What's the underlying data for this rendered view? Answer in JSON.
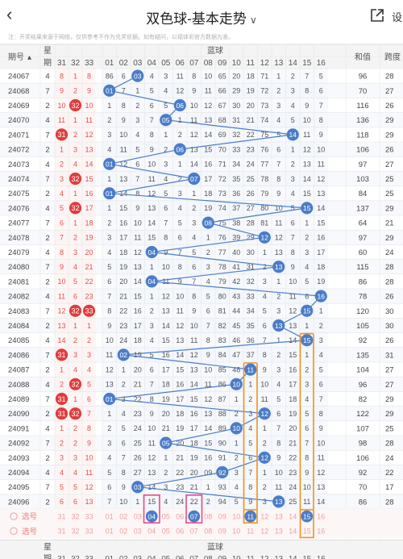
{
  "header": {
    "back_icon": "back-chevron-icon",
    "title": "双色球-基本走势",
    "title_chevron": "chevron-down-icon",
    "share_icon": "share-icon",
    "settings_label": "设"
  },
  "notice": "注：开奖结果来源于网络，仅供参考不作为兑奖依据。如有疑问，以福体彩官方数据为准。",
  "table": {
    "col_period": "期号",
    "col_week": "星期",
    "col_blue": "蓝球",
    "col_sum": "和值",
    "col_span": "跨度",
    "week_head_top": "星",
    "week_head_bottom": "期",
    "red_headers": [
      "31",
      "32",
      "33"
    ],
    "blue_headers": [
      "01",
      "02",
      "03",
      "04",
      "05",
      "06",
      "07",
      "08",
      "09",
      "10",
      "11",
      "12",
      "13",
      "14",
      "15",
      "16"
    ],
    "rows": [
      {
        "p": "24067",
        "w": "4",
        "r": [
          "8",
          "1",
          "8"
        ],
        "b": [
          "86",
          "6",
          "03",
          "4",
          "3",
          "11",
          "8",
          "10",
          "65",
          "20",
          "18",
          "71",
          "1",
          "2",
          "7",
          "5"
        ],
        "hit": 3,
        "sum": "96",
        "span": "28"
      },
      {
        "p": "24068",
        "w": "7",
        "r": [
          "9",
          "2",
          "9"
        ],
        "b": [
          "01",
          "7",
          "1",
          "5",
          "4",
          "12",
          "9",
          "11",
          "66",
          "29",
          "19",
          "72",
          "2",
          "3",
          "8",
          "6"
        ],
        "hit": 1,
        "sum": "70",
        "span": "27"
      },
      {
        "p": "24069",
        "w": "2",
        "r": [
          "10",
          "32",
          "10"
        ],
        "b": [
          "1",
          "8",
          "2",
          "6",
          "5",
          "06",
          "10",
          "12",
          "67",
          "30",
          "20",
          "73",
          "3",
          "4",
          "9",
          "7"
        ],
        "hit": 6,
        "sum": "116",
        "span": "26"
      },
      {
        "p": "24070",
        "w": "4",
        "r": [
          "11",
          "1",
          "11"
        ],
        "b": [
          "2",
          "9",
          "3",
          "7",
          "05",
          "1",
          "11",
          "13",
          "68",
          "31",
          "21",
          "74",
          "4",
          "5",
          "10",
          "8"
        ],
        "hit": 5,
        "sum": "136",
        "span": "29"
      },
      {
        "p": "24071",
        "w": "7",
        "r": [
          "31",
          "2",
          "12"
        ],
        "b": [
          "3",
          "10",
          "4",
          "8",
          "1",
          "2",
          "12",
          "14",
          "69",
          "32",
          "22",
          "75",
          "5",
          "14",
          "11",
          "9"
        ],
        "hit": 14,
        "sum": "118",
        "span": "29"
      },
      {
        "p": "24072",
        "w": "2",
        "r": [
          "1",
          "3",
          "13"
        ],
        "b": [
          "4",
          "11",
          "5",
          "9",
          "2",
          "06",
          "13",
          "15",
          "70",
          "33",
          "23",
          "76",
          "6",
          "1",
          "12",
          "10"
        ],
        "hit": 6,
        "sum": "106",
        "span": "26"
      },
      {
        "p": "24073",
        "w": "4",
        "r": [
          "2",
          "4",
          "14"
        ],
        "b": [
          "01",
          "12",
          "6",
          "10",
          "3",
          "1",
          "14",
          "16",
          "71",
          "34",
          "24",
          "77",
          "7",
          "2",
          "13",
          "11"
        ],
        "hit": 1,
        "sum": "97",
        "span": "27"
      },
      {
        "p": "24074",
        "w": "7",
        "r": [
          "3",
          "32",
          "15"
        ],
        "b": [
          "1",
          "13",
          "7",
          "11",
          "4",
          "2",
          "07",
          "17",
          "72",
          "35",
          "25",
          "78",
          "8",
          "3",
          "14",
          "12"
        ],
        "hit": 7,
        "sum": "103",
        "span": "25"
      },
      {
        "p": "24075",
        "w": "2",
        "r": [
          "4",
          "1",
          "16"
        ],
        "b": [
          "01",
          "14",
          "8",
          "12",
          "5",
          "3",
          "1",
          "18",
          "73",
          "36",
          "26",
          "79",
          "9",
          "4",
          "15",
          "13"
        ],
        "hit": 1,
        "sum": "84",
        "span": "25"
      },
      {
        "p": "24076",
        "w": "4",
        "r": [
          "5",
          "32",
          "17"
        ],
        "b": [
          "1",
          "15",
          "9",
          "13",
          "6",
          "4",
          "2",
          "19",
          "74",
          "37",
          "27",
          "80",
          "10",
          "5",
          "15",
          "14"
        ],
        "hit": 15,
        "sum": "137",
        "span": "29"
      },
      {
        "p": "24077",
        "w": "7",
        "r": [
          "6",
          "1",
          "18"
        ],
        "b": [
          "2",
          "16",
          "10",
          "14",
          "7",
          "5",
          "3",
          "08",
          "75",
          "38",
          "28",
          "81",
          "11",
          "6",
          "1",
          "15"
        ],
        "hit": 8,
        "sum": "64",
        "span": "21"
      },
      {
        "p": "24078",
        "w": "2",
        "r": [
          "7",
          "2",
          "19"
        ],
        "b": [
          "3",
          "17",
          "11",
          "15",
          "8",
          "6",
          "4",
          "1",
          "76",
          "39",
          "29",
          "12",
          "12",
          "7",
          "2",
          "16"
        ],
        "hit": 12,
        "sum": "97",
        "span": "29"
      },
      {
        "p": "24079",
        "w": "4",
        "r": [
          "8",
          "3",
          "20"
        ],
        "b": [
          "4",
          "18",
          "12",
          "04",
          "9",
          "7",
          "5",
          "2",
          "77",
          "40",
          "30",
          "1",
          "13",
          "8",
          "3",
          "17"
        ],
        "hit": 4,
        "sum": "60",
        "span": "24"
      },
      {
        "p": "24080",
        "w": "7",
        "r": [
          "9",
          "4",
          "21"
        ],
        "b": [
          "5",
          "19",
          "13",
          "1",
          "10",
          "8",
          "6",
          "3",
          "78",
          "41",
          "31",
          "2",
          "13",
          "9",
          "4",
          "18"
        ],
        "hit": 13,
        "sum": "115",
        "span": "28"
      },
      {
        "p": "24081",
        "w": "2",
        "r": [
          "10",
          "5",
          "22"
        ],
        "b": [
          "6",
          "20",
          "14",
          "04",
          "11",
          "9",
          "7",
          "4",
          "79",
          "42",
          "32",
          "3",
          "1",
          "10",
          "5",
          "19"
        ],
        "hit": 4,
        "sum": "86",
        "span": "28"
      },
      {
        "p": "24082",
        "w": "4",
        "r": [
          "11",
          "6",
          "23"
        ],
        "b": [
          "7",
          "21",
          "15",
          "1",
          "12",
          "10",
          "8",
          "5",
          "80",
          "43",
          "33",
          "4",
          "2",
          "11",
          "6",
          "16"
        ],
        "hit": 16,
        "sum": "78",
        "span": "26"
      },
      {
        "p": "24083",
        "w": "7",
        "r": [
          "12",
          "32",
          "33"
        ],
        "b": [
          "8",
          "22",
          "16",
          "2",
          "13",
          "11",
          "9",
          "6",
          "81",
          "44",
          "34",
          "5",
          "3",
          "12",
          "15",
          "1"
        ],
        "hit": 15,
        "sum": "120",
        "span": "30"
      },
      {
        "p": "24084",
        "w": "2",
        "r": [
          "13",
          "1",
          "1"
        ],
        "b": [
          "9",
          "23",
          "17",
          "3",
          "14",
          "12",
          "10",
          "7",
          "82",
          "45",
          "35",
          "6",
          "13",
          "13",
          "1",
          "2"
        ],
        "hit": 13,
        "sum": "105",
        "span": "30"
      },
      {
        "p": "24085",
        "w": "4",
        "r": [
          "14",
          "2",
          "2"
        ],
        "b": [
          "10",
          "24",
          "18",
          "4",
          "15",
          "13",
          "11",
          "8",
          "83",
          "46",
          "36",
          "7",
          "1",
          "14",
          "15",
          "3"
        ],
        "hit": 15,
        "sum": "92",
        "span": "26"
      },
      {
        "p": "24086",
        "w": "7",
        "r": [
          "31",
          "3",
          "3"
        ],
        "b": [
          "11",
          "02",
          "19",
          "5",
          "16",
          "14",
          "12",
          "9",
          "84",
          "47",
          "37",
          "8",
          "2",
          "15",
          "1",
          "4"
        ],
        "hit": 2,
        "sum": "135",
        "span": "31"
      },
      {
        "p": "24087",
        "w": "2",
        "r": [
          "1",
          "4",
          "4"
        ],
        "b": [
          "12",
          "1",
          "20",
          "6",
          "17",
          "15",
          "13",
          "10",
          "85",
          "48",
          "11",
          "9",
          "3",
          "16",
          "2",
          "5"
        ],
        "hit": 11,
        "sum": "104",
        "span": "27"
      },
      {
        "p": "24088",
        "w": "4",
        "r": [
          "2",
          "32",
          "5"
        ],
        "b": [
          "13",
          "2",
          "21",
          "7",
          "18",
          "16",
          "14",
          "11",
          "86",
          "10",
          "1",
          "10",
          "4",
          "17",
          "3",
          "6"
        ],
        "hit": 10,
        "sum": "96",
        "span": "27"
      },
      {
        "p": "24089",
        "w": "7",
        "r": [
          "31",
          "1",
          "6"
        ],
        "b": [
          "01",
          "3",
          "22",
          "8",
          "19",
          "17",
          "15",
          "12",
          "87",
          "1",
          "2",
          "11",
          "5",
          "18",
          "4",
          "7"
        ],
        "hit": 1,
        "sum": "82",
        "span": "29"
      },
      {
        "p": "24090",
        "w": "2",
        "r": [
          "31",
          "32",
          "7"
        ],
        "b": [
          "1",
          "4",
          "23",
          "9",
          "20",
          "18",
          "16",
          "13",
          "88",
          "2",
          "3",
          "12",
          "6",
          "19",
          "5",
          "8"
        ],
        "hit": 12,
        "sum": "122",
        "span": "29"
      },
      {
        "p": "24091",
        "w": "4",
        "r": [
          "1",
          "2",
          "8"
        ],
        "b": [
          "2",
          "5",
          "24",
          "10",
          "21",
          "19",
          "17",
          "14",
          "89",
          "10",
          "4",
          "1",
          "7",
          "20",
          "6",
          "9"
        ],
        "hit": 10,
        "sum": "107",
        "span": "25"
      },
      {
        "p": "24092",
        "w": "7",
        "r": [
          "2",
          "2",
          "9"
        ],
        "b": [
          "3",
          "6",
          "25",
          "11",
          "05",
          "20",
          "18",
          "15",
          "90",
          "1",
          "5",
          "2",
          "8",
          "21",
          "7",
          "10"
        ],
        "hit": 5,
        "sum": "98",
        "span": "28"
      },
      {
        "p": "24093",
        "w": "2",
        "r": [
          "3",
          "3",
          "10"
        ],
        "b": [
          "4",
          "7",
          "26",
          "12",
          "1",
          "21",
          "19",
          "16",
          "91",
          "2",
          "6",
          "12",
          "9",
          "22",
          "8",
          "11"
        ],
        "hit": 12,
        "sum": "106",
        "span": "24"
      },
      {
        "p": "24094",
        "w": "4",
        "r": [
          "4",
          "4",
          "11"
        ],
        "b": [
          "5",
          "8",
          "27",
          "13",
          "2",
          "22",
          "20",
          "09",
          "92",
          "3",
          "7",
          "1",
          "10",
          "23",
          "9",
          "12"
        ],
        "hit": 9,
        "sum": "92",
        "span": "22"
      },
      {
        "p": "24095",
        "w": "7",
        "r": [
          "5",
          "5",
          "12"
        ],
        "b": [
          "6",
          "9",
          "03",
          "14",
          "3",
          "23",
          "21",
          "1",
          "93",
          "4",
          "8",
          "2",
          "11",
          "24",
          "10",
          "13"
        ],
        "hit": 3,
        "sum": "70",
        "span": "17"
      },
      {
        "p": "24096",
        "w": "2",
        "r": [
          "6",
          "6",
          "13"
        ],
        "b": [
          "7",
          "10",
          "1",
          "15",
          "4",
          "24",
          "22",
          "2",
          "94",
          "5",
          "9",
          "3",
          "13",
          "25",
          "11",
          "14"
        ],
        "hit": 13,
        "sum": "86",
        "span": "28"
      }
    ],
    "select_rows": [
      {
        "label": "选号",
        "r": [
          "31",
          "32",
          "33"
        ],
        "b": [
          "01",
          "02",
          "03",
          "04",
          "05",
          "06",
          "07",
          "08",
          "09",
          "10",
          "11",
          "12",
          "13",
          "14",
          "15",
          "16"
        ],
        "picked": [
          4,
          7,
          11,
          15
        ]
      },
      {
        "label": "选号",
        "r": [
          "31",
          "32",
          "33"
        ],
        "b": [
          "01",
          "02",
          "03",
          "04",
          "05",
          "06",
          "07",
          "08",
          "09",
          "10",
          "11",
          "12",
          "13",
          "14",
          "15",
          "16"
        ],
        "picked": []
      }
    ]
  },
  "colors": {
    "blue_ball": "#4a7dc9",
    "red_ball": "#e03c3c",
    "orange_box": "#f0921e",
    "pink_box": "#e84c8c",
    "grid": "#e6e6e6",
    "head_bg": "#f4f4f4",
    "odd_row": "#ffffff",
    "even_row": "#f7f9fc",
    "red_zone_bg": "#fdf2f1",
    "blue_zone_bg": "#f1f5fb"
  }
}
